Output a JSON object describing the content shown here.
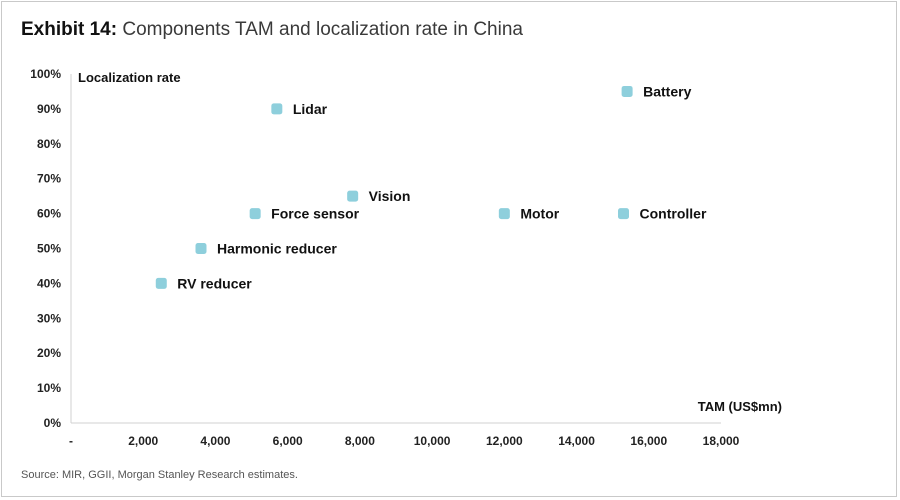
{
  "header": {
    "exhibit": "Exhibit 14:",
    "title": "Components TAM and localization rate in China"
  },
  "footer": {
    "source": "Source: MIR, GGII, Morgan Stanley Research estimates."
  },
  "chart_data": {
    "type": "scatter",
    "xlabel": "TAM (US$mn)",
    "ylabel": "Localization rate",
    "xlim": [
      0,
      18000
    ],
    "ylim": [
      0,
      100
    ],
    "x_ticks": [
      "-",
      "2,000",
      "4,000",
      "6,000",
      "8,000",
      "10,000",
      "12,000",
      "14,000",
      "16,000",
      "18,000"
    ],
    "y_ticks": [
      "0%",
      "10%",
      "20%",
      "30%",
      "40%",
      "50%",
      "60%",
      "70%",
      "80%",
      "90%",
      "100%"
    ],
    "grid": false,
    "legend": "none",
    "marker_color": "#8ecfdc",
    "points": [
      {
        "label": "RV reducer",
        "x": 2500,
        "y": 40
      },
      {
        "label": "Harmonic reducer",
        "x": 3600,
        "y": 50
      },
      {
        "label": "Force sensor",
        "x": 5100,
        "y": 60
      },
      {
        "label": "Lidar",
        "x": 5700,
        "y": 90
      },
      {
        "label": "Vision",
        "x": 7800,
        "y": 65
      },
      {
        "label": "Motor",
        "x": 12000,
        "y": 60
      },
      {
        "label": "Controller",
        "x": 15300,
        "y": 60
      },
      {
        "label": "Battery",
        "x": 15400,
        "y": 95
      }
    ]
  }
}
